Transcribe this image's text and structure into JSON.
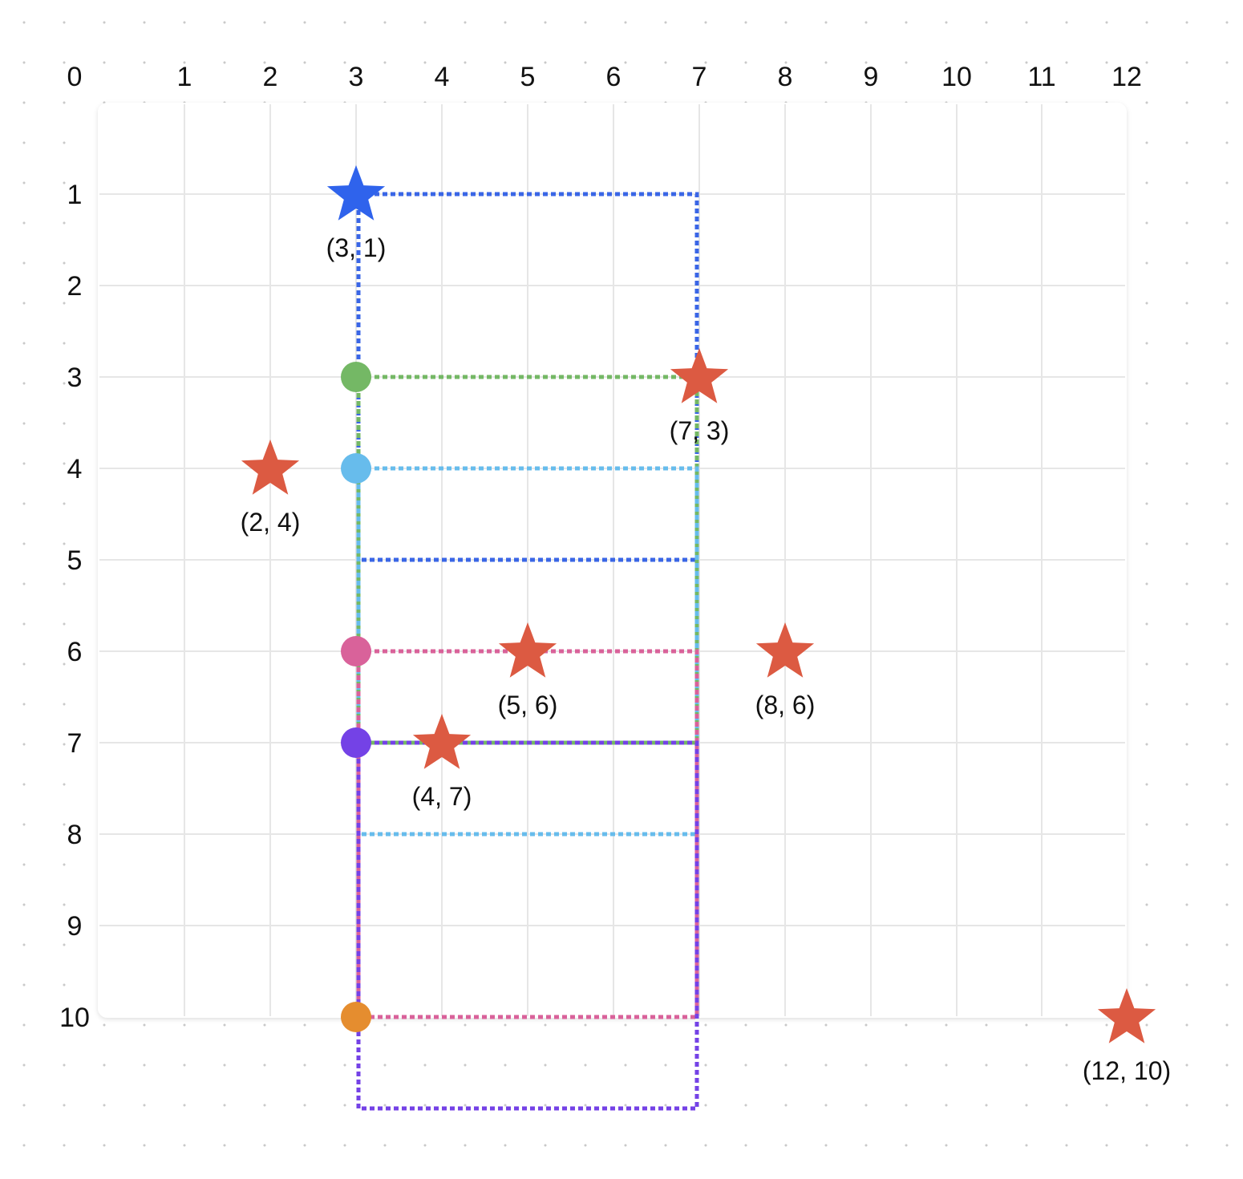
{
  "x_axis": {
    "ticks": [
      {
        "value": 0,
        "label": "0"
      },
      {
        "value": 1,
        "label": "1"
      },
      {
        "value": 2,
        "label": "2"
      },
      {
        "value": 3,
        "label": "3"
      },
      {
        "value": 4,
        "label": "4"
      },
      {
        "value": 5,
        "label": "5"
      },
      {
        "value": 6,
        "label": "6"
      },
      {
        "value": 7,
        "label": "7"
      },
      {
        "value": 8,
        "label": "8"
      },
      {
        "value": 9,
        "label": "9"
      },
      {
        "value": 10,
        "label": "10"
      },
      {
        "value": 11,
        "label": "11"
      },
      {
        "value": 12,
        "label": "12"
      }
    ]
  },
  "y_axis": {
    "ticks": [
      {
        "value": 1,
        "label": "1"
      },
      {
        "value": 2,
        "label": "2"
      },
      {
        "value": 3,
        "label": "3"
      },
      {
        "value": 4,
        "label": "4"
      },
      {
        "value": 5,
        "label": "5"
      },
      {
        "value": 6,
        "label": "6"
      },
      {
        "value": 7,
        "label": "7"
      },
      {
        "value": 8,
        "label": "8"
      },
      {
        "value": 9,
        "label": "9"
      },
      {
        "value": 10,
        "label": "10"
      }
    ]
  },
  "colors": {
    "grid": "#e6e6e6",
    "star_red": "#dc5a42",
    "star_blue": "#2f63ec",
    "blue": "#3a66e6",
    "green": "#74b865",
    "light_blue": "#67bcec",
    "pink": "#d9629a",
    "purple": "#7442e6",
    "orange": "#e58d2f"
  },
  "stars": [
    {
      "x": 3,
      "y": 1,
      "label": "(3, 1)",
      "color": "#2f63ec"
    },
    {
      "x": 7,
      "y": 3,
      "label": "(7, 3)",
      "color": "#dc5a42"
    },
    {
      "x": 2,
      "y": 4,
      "label": "(2, 4)",
      "color": "#dc5a42"
    },
    {
      "x": 5,
      "y": 6,
      "label": "(5, 6)",
      "color": "#dc5a42"
    },
    {
      "x": 8,
      "y": 6,
      "label": "(8, 6)",
      "color": "#dc5a42"
    },
    {
      "x": 4,
      "y": 7,
      "label": "(4, 7)",
      "color": "#dc5a42"
    },
    {
      "x": 12,
      "y": 10,
      "label": "(12, 10)",
      "color": "#dc5a42"
    }
  ],
  "circles": [
    {
      "x": 3,
      "y": 3,
      "color": "#74b865"
    },
    {
      "x": 3,
      "y": 4,
      "color": "#67bcec"
    },
    {
      "x": 3,
      "y": 6,
      "color": "#d9629a"
    },
    {
      "x": 3,
      "y": 7,
      "color": "#7442e6"
    },
    {
      "x": 3,
      "y": 10,
      "color": "#e58d2f"
    }
  ],
  "dashed_rects": [
    {
      "name": "blue",
      "x1": 3,
      "y1": 1,
      "x2": 7,
      "y2": 5,
      "color": "#3a66e6"
    },
    {
      "name": "green",
      "x1": 3,
      "y1": 3,
      "x2": 7,
      "y2": 7,
      "color": "#74b865"
    },
    {
      "name": "light-blue",
      "x1": 3,
      "y1": 4,
      "x2": 7,
      "y2": 8,
      "color": "#67bcec"
    },
    {
      "name": "pink",
      "x1": 3,
      "y1": 6,
      "x2": 7,
      "y2": 10,
      "color": "#d9629a"
    },
    {
      "name": "purple",
      "x1": 3,
      "y1": 7,
      "x2": 7,
      "y2": 11,
      "color": "#7442e6"
    }
  ]
}
